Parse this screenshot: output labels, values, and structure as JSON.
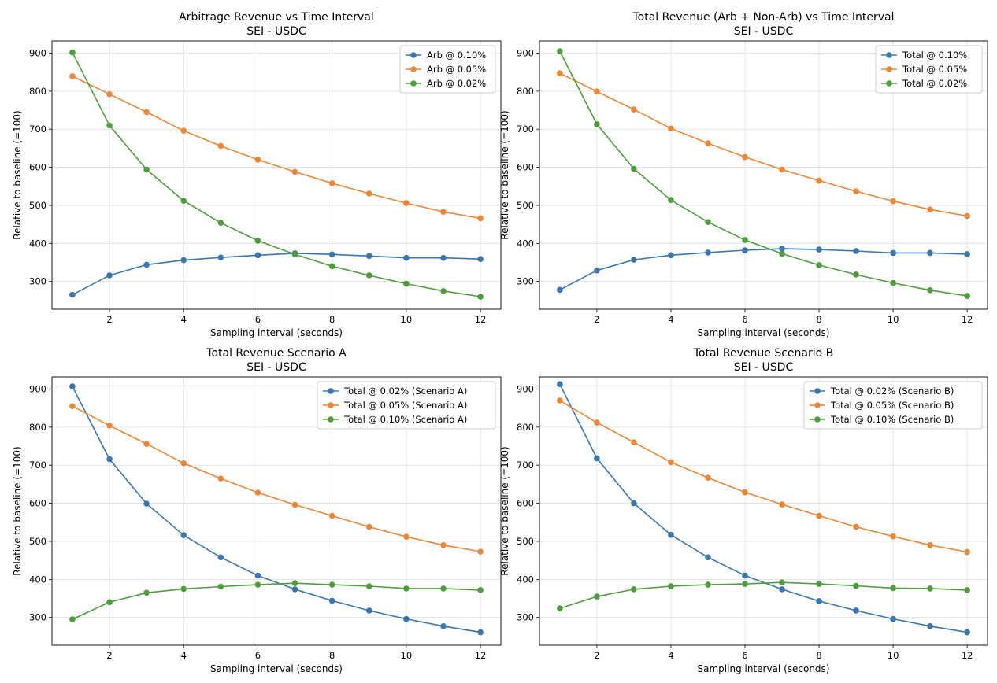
{
  "chart_data": [
    {
      "type": "line",
      "title": "Arbitrage Revenue vs Time Interval",
      "subtitle": "SEI - USDC",
      "xlabel": "Sampling interval (seconds)",
      "ylabel": "Relative to baseline (=100)",
      "xlim": [
        0.45,
        12.55
      ],
      "ylim": [
        227,
        932
      ],
      "x_ticks": [
        2,
        4,
        6,
        8,
        10,
        12
      ],
      "y_ticks": [
        300,
        400,
        500,
        600,
        700,
        800,
        900
      ],
      "grid": true,
      "legend_position": "top-right",
      "x": [
        1,
        2,
        3,
        4,
        5,
        6,
        7,
        8,
        9,
        10,
        11,
        12
      ],
      "series": [
        {
          "name": "Arb @ 0.10%",
          "color": "#3a76b0",
          "values": [
            265,
            316,
            344,
            356,
            363,
            369,
            374,
            371,
            367,
            362,
            362,
            359
          ]
        },
        {
          "name": "Arb @ 0.05%",
          "color": "#ef8636",
          "values": [
            839,
            792,
            745,
            696,
            656,
            620,
            588,
            558,
            531,
            506,
            483,
            466
          ]
        },
        {
          "name": "Arb @ 0.02%",
          "color": "#4f9e3e",
          "values": [
            902,
            710,
            594,
            512,
            454,
            407,
            371,
            340,
            316,
            294,
            275,
            260
          ]
        }
      ]
    },
    {
      "type": "line",
      "title": "Total Revenue (Arb + Non-Arb) vs Time Interval",
      "subtitle": "SEI - USDC",
      "xlabel": "Sampling interval (seconds)",
      "ylabel": "Relative to baseline (=100)",
      "xlim": [
        0.45,
        12.55
      ],
      "ylim": [
        227,
        932
      ],
      "x_ticks": [
        2,
        4,
        6,
        8,
        10,
        12
      ],
      "y_ticks": [
        300,
        400,
        500,
        600,
        700,
        800,
        900
      ],
      "grid": true,
      "legend_position": "top-right",
      "x": [
        1,
        2,
        3,
        4,
        5,
        6,
        7,
        8,
        9,
        10,
        11,
        12
      ],
      "series": [
        {
          "name": "Total @ 0.10%",
          "color": "#3a76b0",
          "values": [
            278,
            329,
            357,
            369,
            376,
            382,
            386,
            384,
            380,
            375,
            375,
            372
          ]
        },
        {
          "name": "Total @ 0.05%",
          "color": "#ef8636",
          "values": [
            847,
            799,
            752,
            702,
            663,
            627,
            594,
            565,
            537,
            511,
            489,
            472
          ]
        },
        {
          "name": "Total @ 0.02%",
          "color": "#4f9e3e",
          "values": [
            905,
            713,
            596,
            514,
            456,
            409,
            373,
            343,
            318,
            296,
            277,
            262
          ]
        }
      ]
    },
    {
      "type": "line",
      "title": "Total Revenue Scenario A",
      "subtitle": "SEI - USDC",
      "xlabel": "Sampling interval (seconds)",
      "ylabel": "Relative to baseline (=100)",
      "xlim": [
        0.45,
        12.55
      ],
      "ylim": [
        227,
        932
      ],
      "x_ticks": [
        2,
        4,
        6,
        8,
        10,
        12
      ],
      "y_ticks": [
        300,
        400,
        500,
        600,
        700,
        800,
        900
      ],
      "grid": true,
      "legend_position": "top-right",
      "x": [
        1,
        2,
        3,
        4,
        5,
        6,
        7,
        8,
        9,
        10,
        11,
        12
      ],
      "series": [
        {
          "name": "Total @ 0.02% (Scenario A)",
          "color": "#3a76b0",
          "values": [
            907,
            716,
            599,
            516,
            458,
            410,
            374,
            344,
            318,
            296,
            277,
            261
          ]
        },
        {
          "name": "Total @ 0.05% (Scenario A)",
          "color": "#ef8636",
          "values": [
            855,
            804,
            756,
            705,
            665,
            628,
            596,
            567,
            538,
            512,
            490,
            473
          ]
        },
        {
          "name": "Total @ 0.10% (Scenario A)",
          "color": "#4f9e3e",
          "values": [
            295,
            340,
            365,
            375,
            381,
            386,
            390,
            386,
            382,
            376,
            376,
            372
          ]
        }
      ]
    },
    {
      "type": "line",
      "title": "Total Revenue Scenario B",
      "subtitle": "SEI - USDC",
      "xlabel": "Sampling interval (seconds)",
      "ylabel": "Relative to baseline (=100)",
      "xlim": [
        0.45,
        12.55
      ],
      "ylim": [
        227,
        932
      ],
      "x_ticks": [
        2,
        4,
        6,
        8,
        10,
        12
      ],
      "y_ticks": [
        300,
        400,
        500,
        600,
        700,
        800,
        900
      ],
      "grid": true,
      "legend_position": "top-right",
      "x": [
        1,
        2,
        3,
        4,
        5,
        6,
        7,
        8,
        9,
        10,
        11,
        12
      ],
      "series": [
        {
          "name": "Total @ 0.02% (Scenario B)",
          "color": "#3a76b0",
          "values": [
            913,
            718,
            600,
            517,
            458,
            410,
            374,
            343,
            318,
            296,
            277,
            261
          ]
        },
        {
          "name": "Total @ 0.05% (Scenario B)",
          "color": "#ef8636",
          "values": [
            870,
            812,
            760,
            708,
            667,
            629,
            597,
            567,
            538,
            513,
            490,
            472
          ]
        },
        {
          "name": "Total @ 0.10% (Scenario B)",
          "color": "#4f9e3e",
          "values": [
            324,
            355,
            374,
            382,
            386,
            388,
            392,
            388,
            383,
            377,
            376,
            372
          ]
        }
      ]
    }
  ]
}
